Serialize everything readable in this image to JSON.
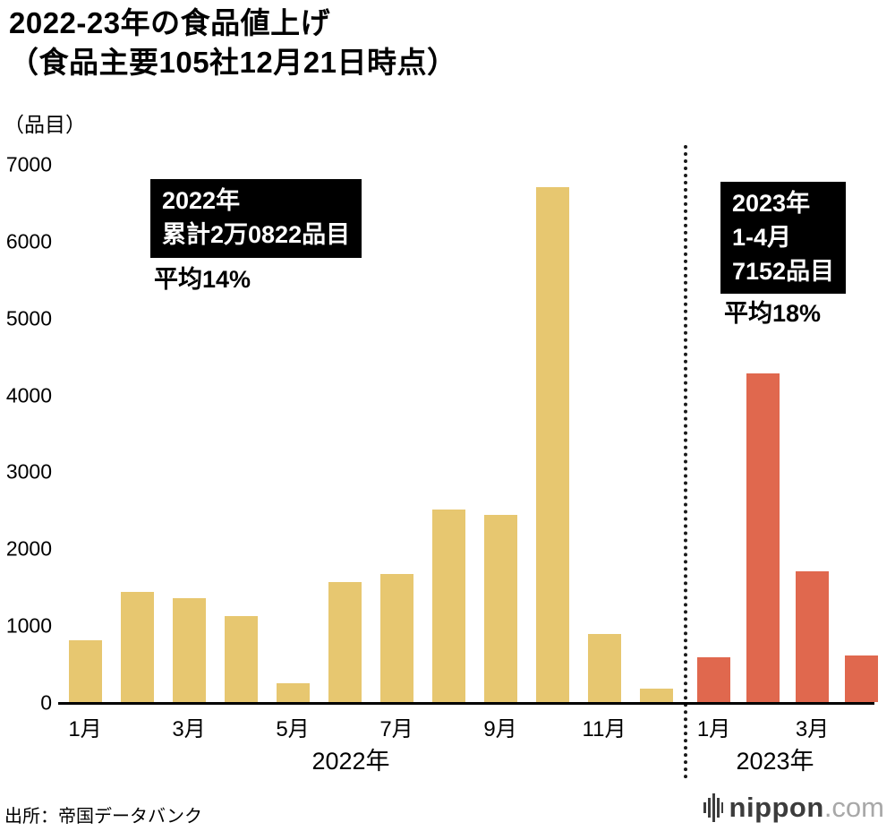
{
  "title": {
    "line1": "2022-23年の食品値上げ",
    "line2": "（食品主要105社12月21日時点）"
  },
  "unit_label": "（品目）",
  "annotations": {
    "left": {
      "box_lines": [
        "2022年",
        "累計2万0822品目"
      ],
      "below": "平均14%"
    },
    "right": {
      "box_lines": [
        "2023年",
        "1-4月",
        "7152品目"
      ],
      "below": "平均18%"
    }
  },
  "source": "出所：帝国データバンク",
  "logo": {
    "name": "nippon",
    "tld": ".com"
  },
  "chart_data": {
    "type": "bar",
    "title": "2022-23年の食品値上げ（食品主要105社12月21日時点）",
    "ylabel": "品目",
    "ylim": [
      0,
      7000
    ],
    "yticks": [
      0,
      1000,
      2000,
      3000,
      4000,
      5000,
      6000,
      7000
    ],
    "grid": false,
    "legend": "none",
    "x_groups": [
      {
        "label": "2022年",
        "months": 12
      },
      {
        "label": "2023年",
        "months": 4
      }
    ],
    "series": [
      {
        "name": "2022年",
        "color": "#e7c770",
        "categories": [
          "1月",
          "2月",
          "3月",
          "4月",
          "5月",
          "6月",
          "7月",
          "8月",
          "9月",
          "10月",
          "11月",
          "12月"
        ],
        "values": [
          800,
          1430,
          1350,
          1120,
          250,
          1560,
          1670,
          2500,
          2430,
          6700,
          890,
          180
        ]
      },
      {
        "name": "2023年",
        "color": "#e0684e",
        "categories": [
          "1月",
          "2月",
          "3月",
          "4月"
        ],
        "values": [
          580,
          4280,
          1700,
          600
        ]
      }
    ],
    "x_tick_labels_2022": [
      "1月",
      "3月",
      "5月",
      "7月",
      "9月",
      "11月"
    ],
    "x_tick_labels_2023": [
      "1月",
      "3月"
    ]
  }
}
